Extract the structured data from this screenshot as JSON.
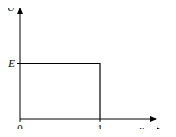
{
  "chart_data": {
    "type": "line",
    "x_label": "x",
    "y_label": "U",
    "x": [
      0,
      1,
      1
    ],
    "values": [
      1,
      1,
      0
    ],
    "color": "#000000",
    "xlim": [
      0,
      1.7
    ],
    "xticks": [
      0,
      1
    ],
    "ylim": [
      0,
      2
    ],
    "yticks": [
      {
        "value": 1,
        "label": "E"
      }
    ],
    "grid": false
  }
}
